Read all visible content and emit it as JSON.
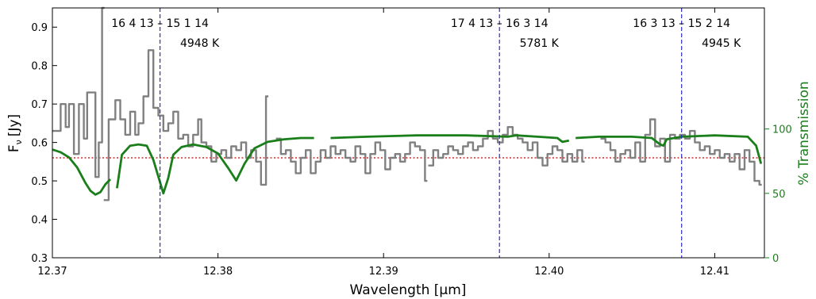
{
  "chart_data": {
    "type": "line",
    "xlabel": "Wavelength [μm]",
    "ylabel": "F_ν [Jy]",
    "ylabel_main": "F",
    "ylabel_sub": "ν",
    "ylabel_unit": "[Jy]",
    "y2label": "% Transmission",
    "xlim": [
      12.37,
      12.413
    ],
    "ylim": [
      0.3,
      0.95
    ],
    "y2lim": [
      0,
      194
    ],
    "x_ticks": [
      12.37,
      12.38,
      12.39,
      12.4,
      12.41
    ],
    "x_tick_labels": [
      "12.37",
      "12.38",
      "12.39",
      "12.40",
      "12.41"
    ],
    "y_ticks": [
      0.3,
      0.4,
      0.5,
      0.6,
      0.7,
      0.8,
      0.9
    ],
    "y_tick_labels": [
      "0.3",
      "0.4",
      "0.5",
      "0.6",
      "0.7",
      "0.8",
      "0.9"
    ],
    "y2_ticks": [
      0,
      50,
      100
    ],
    "y2_tick_labels": [
      "0",
      "50",
      "100"
    ],
    "continuum_level": 0.56,
    "annotations": [
      {
        "x": 12.3765,
        "transition": "16  4 13 – 15  1 14",
        "temperature": "4948  K"
      },
      {
        "x": 12.397,
        "transition": "17  4 13 – 16  3 14",
        "temperature": "5781  K"
      },
      {
        "x": 12.408,
        "transition": "16  3 13 – 15  2 14",
        "temperature": "4945  K"
      }
    ],
    "series": [
      {
        "style": "steps",
        "color": "#808080",
        "segments": [
          [
            [
              12.37,
              0.63
            ],
            [
              12.3705,
              0.7
            ],
            [
              12.3708,
              0.64
            ],
            [
              12.371,
              0.7
            ],
            [
              12.3713,
              0.57
            ],
            [
              12.3716,
              0.7
            ],
            [
              12.3719,
              0.61
            ],
            [
              12.3721,
              0.73
            ],
            [
              12.3726,
              0.51
            ],
            [
              12.3728,
              0.6
            ],
            [
              12.373,
              1.0
            ]
          ],
          [
            [
              12.3731,
              0.45
            ],
            [
              12.3734,
              0.66
            ],
            [
              12.3738,
              0.71
            ],
            [
              12.3741,
              0.66
            ],
            [
              12.3744,
              0.62
            ],
            [
              12.3747,
              0.68
            ],
            [
              12.375,
              0.62
            ],
            [
              12.3752,
              0.65
            ],
            [
              12.3755,
              0.72
            ],
            [
              12.3758,
              0.84
            ],
            [
              12.3761,
              0.69
            ],
            [
              12.3764,
              0.67
            ],
            [
              12.3767,
              0.63
            ],
            [
              12.377,
              0.65
            ],
            [
              12.3773,
              0.68
            ],
            [
              12.3776,
              0.61
            ],
            [
              12.3779,
              0.62
            ],
            [
              12.3782,
              0.59
            ],
            [
              12.3785,
              0.62
            ],
            [
              12.3788,
              0.66
            ],
            [
              12.379,
              0.6
            ],
            [
              12.3793,
              0.59
            ],
            [
              12.3796,
              0.55
            ],
            [
              12.3799,
              0.57
            ],
            [
              12.3802,
              0.58
            ],
            [
              12.3805,
              0.56
            ],
            [
              12.3808,
              0.59
            ],
            [
              12.3811,
              0.58
            ],
            [
              12.3814,
              0.6
            ],
            [
              12.3817,
              0.56
            ],
            [
              12.382,
              0.58
            ],
            [
              12.3823,
              0.55
            ],
            [
              12.3826,
              0.49
            ],
            [
              12.3829,
              0.72
            ]
          ],
          [
            [
              12.3835,
              0.61
            ],
            [
              12.3838,
              0.57
            ],
            [
              12.3841,
              0.58
            ],
            [
              12.3844,
              0.55
            ],
            [
              12.3847,
              0.52
            ],
            [
              12.385,
              0.56
            ],
            [
              12.3853,
              0.58
            ],
            [
              12.3856,
              0.52
            ],
            [
              12.3859,
              0.55
            ],
            [
              12.3862,
              0.58
            ],
            [
              12.3865,
              0.56
            ],
            [
              12.3868,
              0.59
            ],
            [
              12.3871,
              0.57
            ],
            [
              12.3874,
              0.58
            ],
            [
              12.3877,
              0.56
            ],
            [
              12.388,
              0.55
            ],
            [
              12.3883,
              0.59
            ],
            [
              12.3886,
              0.57
            ],
            [
              12.3889,
              0.52
            ],
            [
              12.3892,
              0.57
            ],
            [
              12.3895,
              0.6
            ],
            [
              12.3898,
              0.58
            ],
            [
              12.3901,
              0.53
            ],
            [
              12.3904,
              0.56
            ],
            [
              12.3907,
              0.57
            ],
            [
              12.391,
              0.55
            ],
            [
              12.3913,
              0.57
            ],
            [
              12.3916,
              0.6
            ],
            [
              12.3919,
              0.59
            ],
            [
              12.3922,
              0.58
            ],
            [
              12.3925,
              0.5
            ]
          ],
          [
            [
              12.3927,
              0.54
            ],
            [
              12.393,
              0.58
            ],
            [
              12.3933,
              0.56
            ],
            [
              12.3936,
              0.57
            ],
            [
              12.3939,
              0.59
            ],
            [
              12.3942,
              0.58
            ],
            [
              12.3945,
              0.57
            ],
            [
              12.3948,
              0.59
            ],
            [
              12.3951,
              0.6
            ],
            [
              12.3954,
              0.58
            ],
            [
              12.3957,
              0.59
            ],
            [
              12.396,
              0.61
            ],
            [
              12.3963,
              0.63
            ],
            [
              12.3966,
              0.61
            ],
            [
              12.3969,
              0.6
            ],
            [
              12.3972,
              0.62
            ],
            [
              12.3975,
              0.64
            ],
            [
              12.3978,
              0.62
            ],
            [
              12.3981,
              0.61
            ],
            [
              12.3984,
              0.6
            ],
            [
              12.3987,
              0.58
            ],
            [
              12.399,
              0.6
            ],
            [
              12.3993,
              0.56
            ],
            [
              12.3996,
              0.54
            ],
            [
              12.3999,
              0.57
            ],
            [
              12.4002,
              0.59
            ],
            [
              12.4005,
              0.58
            ],
            [
              12.4008,
              0.55
            ],
            [
              12.4011,
              0.57
            ],
            [
              12.4014,
              0.55
            ],
            [
              12.4017,
              0.58
            ],
            [
              12.402,
              0.55
            ]
          ],
          [
            [
              12.4031,
              0.61
            ],
            [
              12.4034,
              0.6
            ],
            [
              12.4037,
              0.58
            ],
            [
              12.404,
              0.55
            ],
            [
              12.4043,
              0.57
            ],
            [
              12.4046,
              0.58
            ],
            [
              12.4049,
              0.56
            ],
            [
              12.4052,
              0.6
            ],
            [
              12.4055,
              0.55
            ],
            [
              12.4058,
              0.62
            ],
            [
              12.4061,
              0.66
            ],
            [
              12.4064,
              0.59
            ],
            [
              12.4067,
              0.61
            ],
            [
              12.407,
              0.55
            ],
            [
              12.4073,
              0.62
            ],
            [
              12.4076,
              0.61
            ],
            [
              12.4079,
              0.62
            ],
            [
              12.4082,
              0.61
            ],
            [
              12.4085,
              0.63
            ],
            [
              12.4088,
              0.6
            ],
            [
              12.4091,
              0.58
            ],
            [
              12.4094,
              0.59
            ],
            [
              12.4097,
              0.57
            ],
            [
              12.41,
              0.58
            ],
            [
              12.4103,
              0.56
            ],
            [
              12.4106,
              0.57
            ],
            [
              12.4109,
              0.55
            ],
            [
              12.4112,
              0.57
            ],
            [
              12.4115,
              0.53
            ],
            [
              12.4118,
              0.58
            ],
            [
              12.4121,
              0.55
            ],
            [
              12.4124,
              0.5
            ],
            [
              12.4127,
              0.49
            ]
          ]
        ]
      },
      {
        "style": "line",
        "axis": "right",
        "color": "#1a7f1a",
        "segments": [
          [
            [
              12.37,
              84
            ],
            [
              12.3705,
              82
            ],
            [
              12.371,
              78
            ],
            [
              12.3715,
              70
            ],
            [
              12.372,
              58
            ],
            [
              12.3723,
              52
            ],
            [
              12.3726,
              49
            ],
            [
              12.3729,
              51
            ],
            [
              12.3732,
              57
            ],
            [
              12.3735,
              61
            ]
          ],
          [
            [
              12.3739,
              54
            ],
            [
              12.3742,
              80
            ],
            [
              12.3747,
              87
            ],
            [
              12.3752,
              88
            ],
            [
              12.3757,
              87
            ],
            [
              12.3761,
              76
            ],
            [
              12.3764,
              63
            ],
            [
              12.3767,
              50
            ],
            [
              12.377,
              62
            ],
            [
              12.3773,
              80
            ],
            [
              12.3778,
              86
            ],
            [
              12.3785,
              88
            ],
            [
              12.3793,
              86
            ],
            [
              12.38,
              81
            ],
            [
              12.3806,
              70
            ],
            [
              12.3811,
              60
            ],
            [
              12.3816,
              73
            ],
            [
              12.3822,
              85
            ],
            [
              12.383,
              90
            ],
            [
              12.384,
              92
            ],
            [
              12.385,
              93
            ],
            [
              12.3858,
              93
            ]
          ],
          [
            [
              12.3868,
              93
            ],
            [
              12.389,
              94
            ],
            [
              12.392,
              95
            ],
            [
              12.395,
              95
            ],
            [
              12.3975,
              94
            ],
            [
              12.398,
              95
            ],
            [
              12.3993,
              94
            ],
            [
              12.4005,
              93
            ],
            [
              12.4008,
              90
            ],
            [
              12.4012,
              91
            ]
          ],
          [
            [
              12.4016,
              93
            ],
            [
              12.403,
              94
            ],
            [
              12.405,
              94
            ],
            [
              12.4062,
              93
            ],
            [
              12.4067,
              88
            ],
            [
              12.4069,
              87
            ],
            [
              12.4071,
              92
            ],
            [
              12.408,
              94
            ],
            [
              12.41,
              95
            ],
            [
              12.412,
              94
            ],
            [
              12.4125,
              87
            ],
            [
              12.4128,
              73
            ]
          ]
        ]
      }
    ]
  }
}
